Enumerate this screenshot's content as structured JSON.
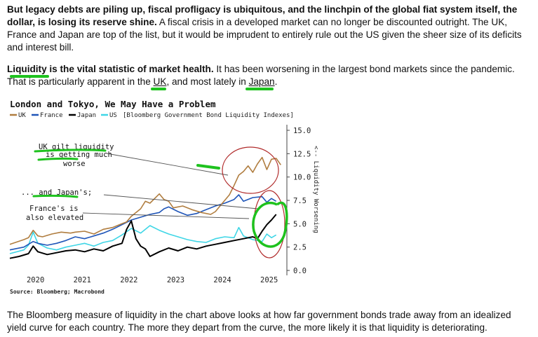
{
  "paragraph1": {
    "bold": "But legacy debts are piling up, fiscal profligacy is ubiquitous, and the linchpin of the global fiat system itself, the dollar, is losing its reserve shine.",
    "text": " A fiscal crisis in a developed market can no longer be discounted outright. The UK, France and Japan are top of the list, but it would be imprudent to entirely rule out the US given the sheer size of its deficits and interest bill."
  },
  "paragraph2": {
    "bold": "Liquidity is the vital statistic of market health.",
    "text_a": " It has been worsening in the largest bond markets since the pandemic. That is particularly apparent in the ",
    "link_uk": "UK",
    "text_b": ", and most lately in ",
    "link_japan": "Japan",
    "text_c": "."
  },
  "paragraph3": {
    "text": "The Bloomberg measure of liquidity in the chart above looks at how far government bonds trade away from an idealized yield curve for each country. The more they depart from the curve, the more likely it is that liquidity is deteriorating."
  },
  "colors": {
    "uk": "#b07d3f",
    "france": "#1f55b8",
    "japan": "#000000",
    "us": "#3fd6e6",
    "highlight": "#1ec21e",
    "circle": "#b02a2a"
  },
  "chart_data": {
    "type": "line",
    "title": "London and Tokyo, We May Have a Problem",
    "legend_text": "[Bloomberg Government Bond Liquidity Indexes]",
    "source": "Source: Bloomberg; Macrobond",
    "ylabel": "<-- Liquidity Worsening",
    "xlim": [
      2019.6,
      2025.5
    ],
    "ylim": [
      0,
      15
    ],
    "x_ticks": [
      2020,
      2021,
      2022,
      2023,
      2024,
      2025
    ],
    "y_ticks": [
      "15.0",
      "12.5",
      "10.0",
      "7.5",
      "5.0",
      "2.5",
      "0.0"
    ],
    "y_tick_values": [
      15,
      12.5,
      10,
      7.5,
      5,
      2.5,
      0
    ],
    "annotations": {
      "uk": [
        "UK gilt liquidity",
        "is getting much",
        "worse"
      ],
      "japan": [
        "... and Japan's;"
      ],
      "france": [
        "France's is",
        "also elevated"
      ]
    },
    "series": [
      {
        "name": "UK",
        "color": "#b07d3f",
        "x": [
          2019.6,
          2019.9,
          2020.0,
          2020.1,
          2020.2,
          2020.3,
          2020.5,
          2020.7,
          2020.9,
          2021.0,
          2021.2,
          2021.4,
          2021.6,
          2021.8,
          2022.0,
          2022.1,
          2022.2,
          2022.4,
          2022.5,
          2022.6,
          2022.7,
          2022.8,
          2022.9,
          2023.0,
          2023.1,
          2023.3,
          2023.5,
          2023.7,
          2023.9,
          2024.0,
          2024.1,
          2024.2,
          2024.3,
          2024.4,
          2024.5,
          2024.6,
          2024.7,
          2024.8,
          2024.9,
          2025.0,
          2025.1,
          2025.2,
          2025.3,
          2025.4
        ],
        "y": [
          2.8,
          3.3,
          3.5,
          4.3,
          3.7,
          3.6,
          3.9,
          4.1,
          4.0,
          4.1,
          4.2,
          3.9,
          4.4,
          4.6,
          5.0,
          5.2,
          5.8,
          6.6,
          7.4,
          7.2,
          7.7,
          8.2,
          7.6,
          7.4,
          6.7,
          6.9,
          6.5,
          6.2,
          6.0,
          6.3,
          6.9,
          7.5,
          8.1,
          9.1,
          10.2,
          10.6,
          11.2,
          10.5,
          11.4,
          12.1,
          10.8,
          11.9,
          12.0,
          11.3
        ]
      },
      {
        "name": "France",
        "color": "#1f55b8",
        "x": [
          2019.6,
          2019.9,
          2020.0,
          2020.1,
          2020.2,
          2020.4,
          2020.6,
          2020.8,
          2021.0,
          2021.2,
          2021.4,
          2021.6,
          2021.8,
          2022.0,
          2022.2,
          2022.4,
          2022.6,
          2022.8,
          2022.9,
          2023.0,
          2023.2,
          2023.4,
          2023.6,
          2023.8,
          2024.0,
          2024.2,
          2024.4,
          2024.5,
          2024.6,
          2024.8,
          2025.0,
          2025.1,
          2025.2,
          2025.3
        ],
        "y": [
          2.2,
          2.5,
          2.8,
          3.1,
          2.9,
          2.7,
          2.9,
          3.2,
          3.6,
          3.4,
          3.7,
          4.0,
          4.4,
          4.9,
          5.4,
          5.7,
          6.0,
          6.2,
          6.6,
          6.8,
          6.3,
          5.9,
          6.1,
          6.5,
          6.9,
          7.2,
          7.6,
          8.1,
          7.4,
          7.8,
          7.9,
          7.3,
          7.7,
          7.4
        ]
      },
      {
        "name": "Japan",
        "color": "#000000",
        "x": [
          2019.6,
          2019.8,
          2020.0,
          2020.1,
          2020.2,
          2020.4,
          2020.6,
          2020.8,
          2021.0,
          2021.2,
          2021.4,
          2021.6,
          2021.8,
          2022.0,
          2022.1,
          2022.2,
          2022.3,
          2022.4,
          2022.5,
          2022.6,
          2022.8,
          2023.0,
          2023.2,
          2023.4,
          2023.6,
          2023.8,
          2024.0,
          2024.2,
          2024.4,
          2024.6,
          2024.8,
          2024.9,
          2025.0,
          2025.1,
          2025.2,
          2025.3
        ],
        "y": [
          1.3,
          1.5,
          1.8,
          2.6,
          2.0,
          1.7,
          1.9,
          2.1,
          2.2,
          2.0,
          2.3,
          2.1,
          2.6,
          2.9,
          4.4,
          5.3,
          3.4,
          2.6,
          2.3,
          1.5,
          2.0,
          2.4,
          2.1,
          2.5,
          2.3,
          2.6,
          2.8,
          3.0,
          3.2,
          3.4,
          3.6,
          3.4,
          4.2,
          4.9,
          5.4,
          6.0
        ]
      },
      {
        "name": "US",
        "color": "#3fd6e6",
        "x": [
          2019.6,
          2019.9,
          2020.0,
          2020.1,
          2020.2,
          2020.4,
          2020.6,
          2020.8,
          2021.0,
          2021.2,
          2021.4,
          2021.6,
          2021.8,
          2022.0,
          2022.2,
          2022.4,
          2022.6,
          2022.8,
          2023.0,
          2023.2,
          2023.4,
          2023.6,
          2023.8,
          2024.0,
          2024.2,
          2024.4,
          2024.5,
          2024.6,
          2024.8,
          2025.0,
          2025.1,
          2025.2,
          2025.3
        ],
        "y": [
          1.8,
          2.2,
          2.7,
          4.1,
          2.9,
          2.4,
          2.2,
          2.5,
          2.7,
          2.9,
          2.6,
          3.0,
          3.2,
          3.8,
          4.5,
          4.0,
          4.8,
          4.3,
          3.9,
          3.6,
          3.3,
          3.1,
          3.0,
          3.4,
          3.6,
          3.5,
          4.6,
          3.7,
          3.3,
          3.1,
          3.9,
          3.5,
          3.8
        ]
      }
    ]
  }
}
